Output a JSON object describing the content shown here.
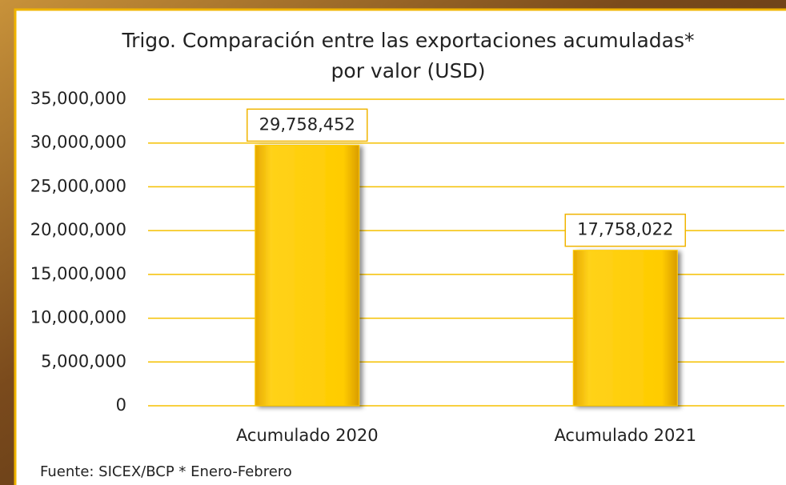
{
  "chart_data": {
    "type": "bar",
    "title": [
      "Trigo. Comparación entre las exportaciones acumuladas*",
      "por valor (USD)"
    ],
    "categories": [
      "Acumulado 2020",
      "Acumulado 2021"
    ],
    "values": [
      29758452,
      17758022
    ],
    "value_labels": [
      "29,758,452",
      "17,758,022"
    ],
    "color": "#ffcc00",
    "ylim": [
      0,
      35000000
    ],
    "yticks": [
      0,
      {
        "value": 5000000,
        "label": "5,000,000"
      },
      {
        "value": 10000000,
        "label": "10,000,000"
      },
      {
        "value": 15000000,
        "label": "15,000,000"
      },
      {
        "value": 20000000,
        "label": "20,000,000"
      },
      {
        "value": 25000000,
        "label": "25,000,000"
      },
      {
        "value": 30000000,
        "label": "30,000,000"
      },
      {
        "value": 35000000,
        "label": "35,000,000"
      }
    ],
    "grid": true,
    "source": "Fuente: SICEX/BCP  * Enero-Febrero"
  }
}
